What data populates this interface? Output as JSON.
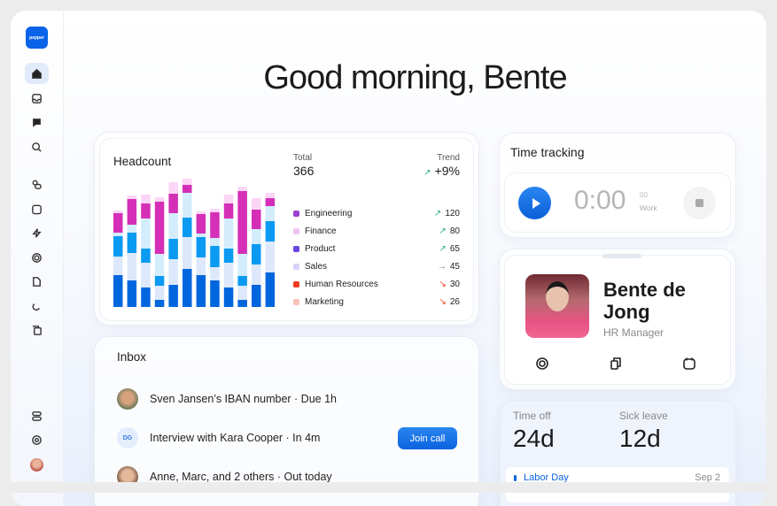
{
  "sidebar": {
    "logo": "pepper",
    "items": [
      {
        "icon": "home-icon",
        "active": true
      },
      {
        "icon": "inbox-icon"
      },
      {
        "icon": "chat-icon"
      },
      {
        "icon": "search-icon"
      },
      {
        "icon": "people-icon"
      },
      {
        "icon": "calendar-icon"
      },
      {
        "icon": "bolt-icon"
      },
      {
        "icon": "target-icon"
      },
      {
        "icon": "document-icon"
      },
      {
        "icon": "magnet-icon"
      },
      {
        "icon": "files-icon"
      }
    ],
    "bottom": [
      {
        "icon": "settings-toggle-icon"
      },
      {
        "icon": "help-icon"
      },
      {
        "icon": "user-avatar"
      }
    ]
  },
  "greeting": "Good morning, Bente",
  "headcount": {
    "title": "Headcount",
    "total_label": "Total",
    "total": "366",
    "trend_label": "Trend",
    "trend": "+9%",
    "legend": [
      {
        "name": "Engineering",
        "value": "120",
        "trend": "up",
        "color": "#9b3fcf"
      },
      {
        "name": "Finance",
        "value": "80",
        "trend": "up",
        "color": "#efc3f2"
      },
      {
        "name": "Product",
        "value": "65",
        "trend": "up",
        "color": "#6a45e0"
      },
      {
        "name": "Sales",
        "value": "45",
        "trend": "flat",
        "color": "#d7d2f8"
      },
      {
        "name": "Human Resources",
        "value": "30",
        "trend": "down",
        "color": "#ef3b1f"
      },
      {
        "name": "Marketing",
        "value": "26",
        "trend": "down",
        "color": "#fbc3b8"
      }
    ]
  },
  "chart_data": {
    "type": "bar",
    "stacked": true,
    "segment_colors": [
      "#0066dd",
      "#dde8fc",
      "#0a9af2",
      "#d4edfd",
      "#d42fb6",
      "#fbd5f5"
    ],
    "bars": [
      [
        36,
        21,
        23,
        4,
        22,
        3
      ],
      [
        30,
        31,
        23,
        9,
        29,
        4
      ],
      [
        22,
        28,
        16,
        34,
        17,
        10
      ],
      [
        8,
        16,
        11,
        25,
        59,
        5
      ],
      [
        25,
        29,
        23,
        29,
        22,
        13
      ],
      [
        43,
        36,
        22,
        28,
        9,
        7
      ],
      [
        36,
        20,
        23,
        4,
        22,
        3
      ],
      [
        30,
        15,
        24,
        9,
        29,
        4
      ],
      [
        22,
        28,
        16,
        34,
        17,
        10
      ],
      [
        8,
        16,
        11,
        25,
        71,
        5
      ],
      [
        25,
        23,
        23,
        17,
        22,
        13
      ],
      [
        39,
        35,
        23,
        17,
        9,
        6
      ]
    ]
  },
  "time_tracking": {
    "title": "Time tracking",
    "time": "0:00",
    "seconds": "00",
    "mode": "Work"
  },
  "profile": {
    "name": "Bente de Jong",
    "role": "HR Manager"
  },
  "leave": {
    "time_off_label": "Time off",
    "time_off": "24d",
    "sick_label": "Sick leave",
    "sick": "12d",
    "holiday": "Labor Day",
    "holiday_date": "Sep 2"
  },
  "inbox": {
    "title": "Inbox",
    "items": [
      {
        "text": "Sven Jansen’s IBAN number · Due 1h"
      },
      {
        "initials": "DG",
        "text": "Interview with Kara Cooper · In 4m",
        "action": "Join call"
      },
      {
        "text": "Anne, Marc, and 2 others · Out today"
      }
    ]
  }
}
